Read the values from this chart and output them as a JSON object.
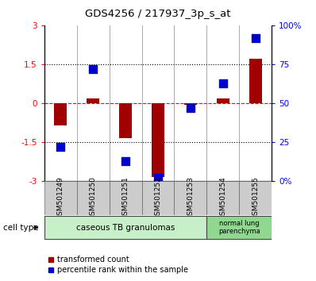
{
  "title": "GDS4256 / 217937_3p_s_at",
  "categories": [
    "GSM501249",
    "GSM501250",
    "GSM501251",
    "GSM501252",
    "GSM501253",
    "GSM501254",
    "GSM501255"
  ],
  "transformed_count": [
    -0.85,
    0.2,
    -1.35,
    -2.85,
    -0.05,
    0.2,
    1.7
  ],
  "percentile_rank": [
    22,
    72,
    13,
    2,
    47,
    63,
    92
  ],
  "ylim_left": [
    -3,
    3
  ],
  "ylim_right": [
    0,
    100
  ],
  "yticks_left": [
    -3,
    -1.5,
    0,
    1.5,
    3
  ],
  "yticks_right": [
    0,
    25,
    50,
    75,
    100
  ],
  "ytick_labels_right": [
    "0%",
    "25",
    "50",
    "75",
    "100%"
  ],
  "hlines_dotted": [
    -1.5,
    1.5
  ],
  "hline_dashed": 0,
  "bar_color": "#a00000",
  "dot_color": "#0000cc",
  "bar_width": 0.4,
  "dot_size": 45,
  "group1_label": "caseous TB granulomas",
  "group1_indices": [
    0,
    1,
    2,
    3,
    4
  ],
  "group2_label": "normal lung\nparenchyma",
  "group2_indices": [
    5,
    6
  ],
  "group1_color": "#c8f0c8",
  "group2_color": "#90d890",
  "cell_type_label": "cell type",
  "legend_bar_label": "transformed count",
  "legend_dot_label": "percentile rank within the sample",
  "plot_bg": "#ffffff",
  "sample_box_color": "#cccccc",
  "separator_color": "#888888"
}
